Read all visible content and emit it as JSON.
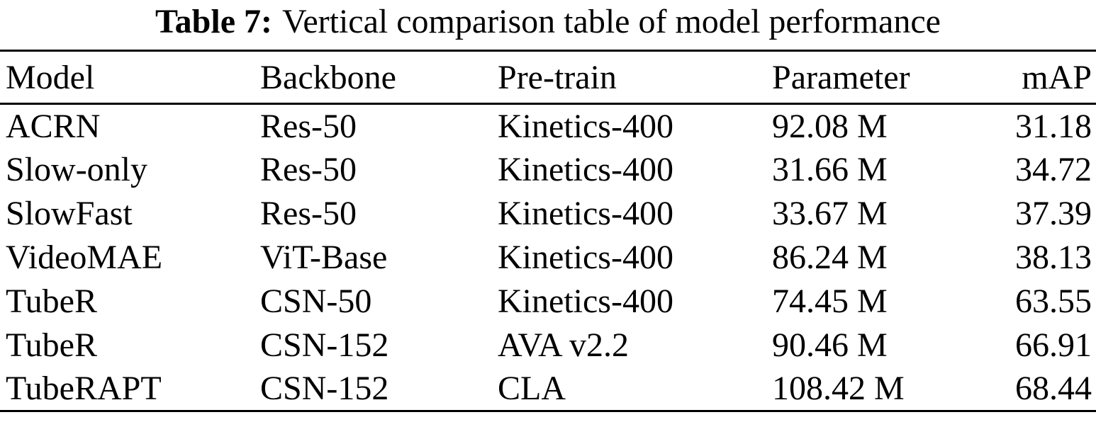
{
  "caption": {
    "label": "Table 7:",
    "text": "Vertical comparison table of model performance"
  },
  "table": {
    "columns": [
      "Model",
      "Backbone",
      "Pre-train",
      "Parameter",
      "mAP"
    ],
    "rows": [
      [
        "ACRN",
        "Res-50",
        "Kinetics-400",
        "92.08 M",
        "31.18"
      ],
      [
        "Slow-only",
        "Res-50",
        "Kinetics-400",
        "31.66 M",
        "34.72"
      ],
      [
        "SlowFast",
        "Res-50",
        "Kinetics-400",
        "33.67 M",
        "37.39"
      ],
      [
        "VideoMAE",
        "ViT-Base",
        "Kinetics-400",
        "86.24 M",
        "38.13"
      ],
      [
        "TubeR",
        "CSN-50",
        "Kinetics-400",
        "74.45 M",
        "63.55"
      ],
      [
        "TubeR",
        "CSN-152",
        "AVA v2.2",
        "90.46 M",
        "66.91"
      ],
      [
        "TubeRAPT",
        "CSN-152",
        "CLA",
        "108.42 M",
        "68.44"
      ]
    ]
  },
  "colors": {
    "text": "#000000",
    "background": "#ffffff",
    "rule": "#000000"
  }
}
